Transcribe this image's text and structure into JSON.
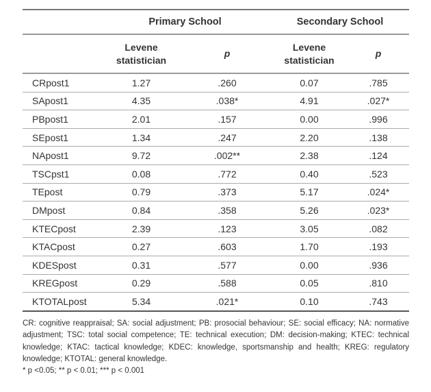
{
  "header": {
    "group1": "Primary School",
    "group2": "Secondary School",
    "stat": "Levene statistician",
    "p": "p"
  },
  "rows": [
    [
      "CRpost1",
      "1.27",
      ".260",
      "0.07",
      ".785"
    ],
    [
      "SApost1",
      "4.35",
      ".038*",
      "4.91",
      ".027*"
    ],
    [
      "PBpost1",
      "2.01",
      ".157",
      "0.00",
      ".996"
    ],
    [
      "SEpost1",
      "1.34",
      ".247",
      "2.20",
      ".138"
    ],
    [
      "NApost1",
      "9.72",
      ".002**",
      "2.38",
      ".124"
    ],
    [
      "TSCpst1",
      "0.08",
      ".772",
      "0.40",
      ".523"
    ],
    [
      "TEpost",
      "0.79",
      ".373",
      "5.17",
      ".024*"
    ],
    [
      "DMpost",
      "0.84",
      ".358",
      "5.26",
      ".023*"
    ],
    [
      "KTECpost",
      "2.39",
      ".123",
      "3.05",
      ".082"
    ],
    [
      "KTACpost",
      "0.27",
      ".603",
      "1.70",
      ".193"
    ],
    [
      "KDESpost",
      "0.31",
      ".577",
      "0.00",
      ".936"
    ],
    [
      "KREGpost",
      "0.29",
      ".588",
      "0.05",
      ".810"
    ],
    [
      "KTOTALpost",
      "5.34",
      ".021*",
      "0.10",
      ".743"
    ]
  ],
  "notes": {
    "abbrev": "CR: cognitive reappraisal; SA: social adjustment; PB: prosocial behaviour; SE: social efficacy; NA: normative adjustment; TSC: total social competence; TE: technical execution; DM: decision-making; KTEC: technical knowledge; KTAC: tactical knowledge; KDEC: knowledge, sportsmanship and health; KREG: regulatory knowledge; KTOTAL: general knowledge.",
    "sig": "* p <0.05; ** p < 0.01; *** p < 0.001"
  }
}
